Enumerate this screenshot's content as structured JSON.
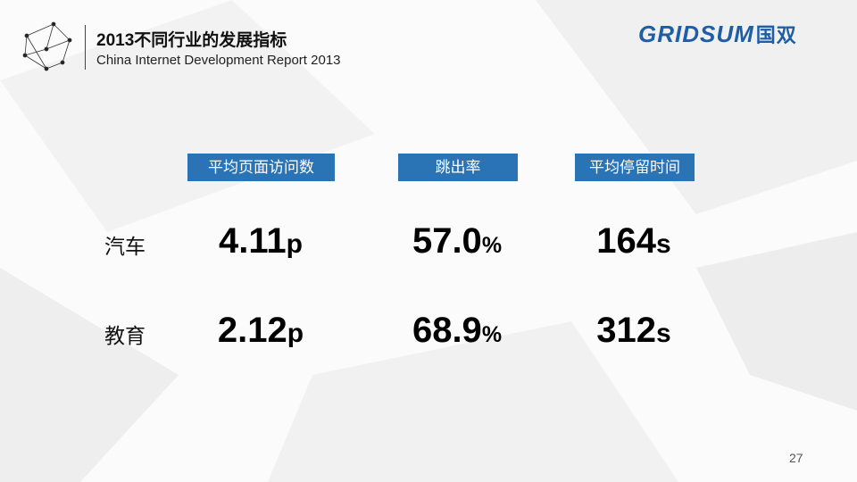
{
  "header": {
    "title": "2013不同行业的发展指标",
    "subtitle": "China Internet Development Report 2013"
  },
  "logo": {
    "brand": "GRIDSUM",
    "chinese": "国双"
  },
  "table": {
    "columns": [
      "平均页面访问数",
      "跳出率",
      "平均停留时间"
    ],
    "rows": [
      {
        "label": "汽车",
        "cells": [
          {
            "number": "4.11",
            "unit": "p"
          },
          {
            "number": "57.0",
            "unit": "%"
          },
          {
            "number": "164",
            "unit": "s"
          }
        ]
      },
      {
        "label": "教育",
        "cells": [
          {
            "number": "2.12",
            "unit": "p"
          },
          {
            "number": "68.9",
            "unit": "%"
          },
          {
            "number": "312",
            "unit": "s"
          }
        ]
      }
    ]
  },
  "page_number": "27"
}
